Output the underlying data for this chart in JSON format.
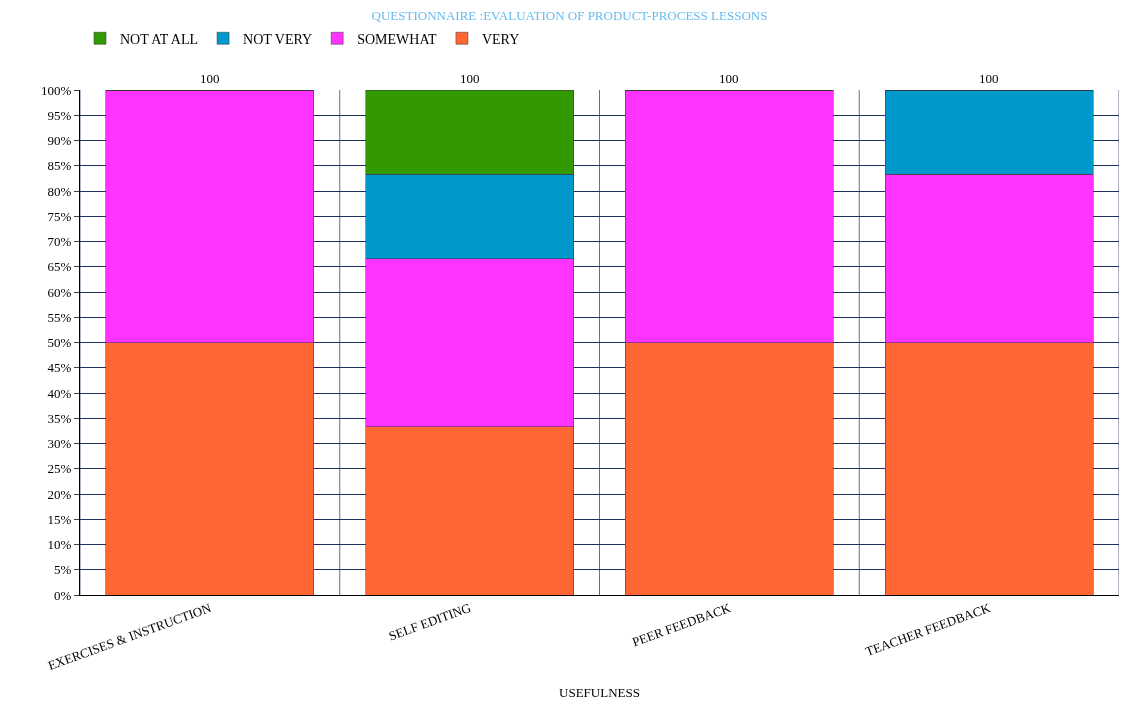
{
  "chart_data": {
    "type": "bar",
    "stacked": true,
    "title": "QUESTIONNAIRE :EVALUATION OF PRODUCT-PROCESS LESSONS",
    "xlabel": "USEFULNESS",
    "categories": [
      "EXERCISES & INSTRUCTION",
      "SELF EDITING",
      "PEER FEEDBACK",
      "TEACHER FEEDBACK"
    ],
    "series": [
      {
        "name": "VERY",
        "color": "#ff6633",
        "values": [
          50,
          33.3,
          50,
          50
        ]
      },
      {
        "name": "SOMEWHAT",
        "color": "#ff33ff",
        "values": [
          50,
          33.3,
          50,
          33.3
        ]
      },
      {
        "name": "NOT VERY",
        "color": "#0099cc",
        "values": [
          0,
          16.7,
          0,
          16.7
        ]
      },
      {
        "name": "NOT AT ALL",
        "color": "#339900",
        "values": [
          0,
          16.7,
          0,
          0
        ]
      }
    ],
    "totals": [
      "100",
      "100",
      "100",
      "100"
    ],
    "ylim": [
      0,
      100
    ],
    "yticks": [
      {
        "value": 0,
        "label": "0%"
      },
      {
        "value": 5,
        "label": "5%"
      },
      {
        "value": 10,
        "label": "10%"
      },
      {
        "value": 15,
        "label": "15%"
      },
      {
        "value": 20,
        "label": "20%"
      },
      {
        "value": 25,
        "label": "25%"
      },
      {
        "value": 30,
        "label": "30%"
      },
      {
        "value": 35,
        "label": "35%"
      },
      {
        "value": 40,
        "label": "40%"
      },
      {
        "value": 45,
        "label": "45%"
      },
      {
        "value": 50,
        "label": "50%"
      },
      {
        "value": 55,
        "label": "55%"
      },
      {
        "value": 60,
        "label": "60%"
      },
      {
        "value": 65,
        "label": "65%"
      },
      {
        "value": 70,
        "label": "70%"
      },
      {
        "value": 75,
        "label": "75%"
      },
      {
        "value": 80,
        "label": "80%"
      },
      {
        "value": 85,
        "label": "85%"
      },
      {
        "value": 90,
        "label": "90%"
      },
      {
        "value": 95,
        "label": "95%"
      },
      {
        "value": 100,
        "label": "100%"
      }
    ],
    "grid": true,
    "legend": "top left"
  }
}
